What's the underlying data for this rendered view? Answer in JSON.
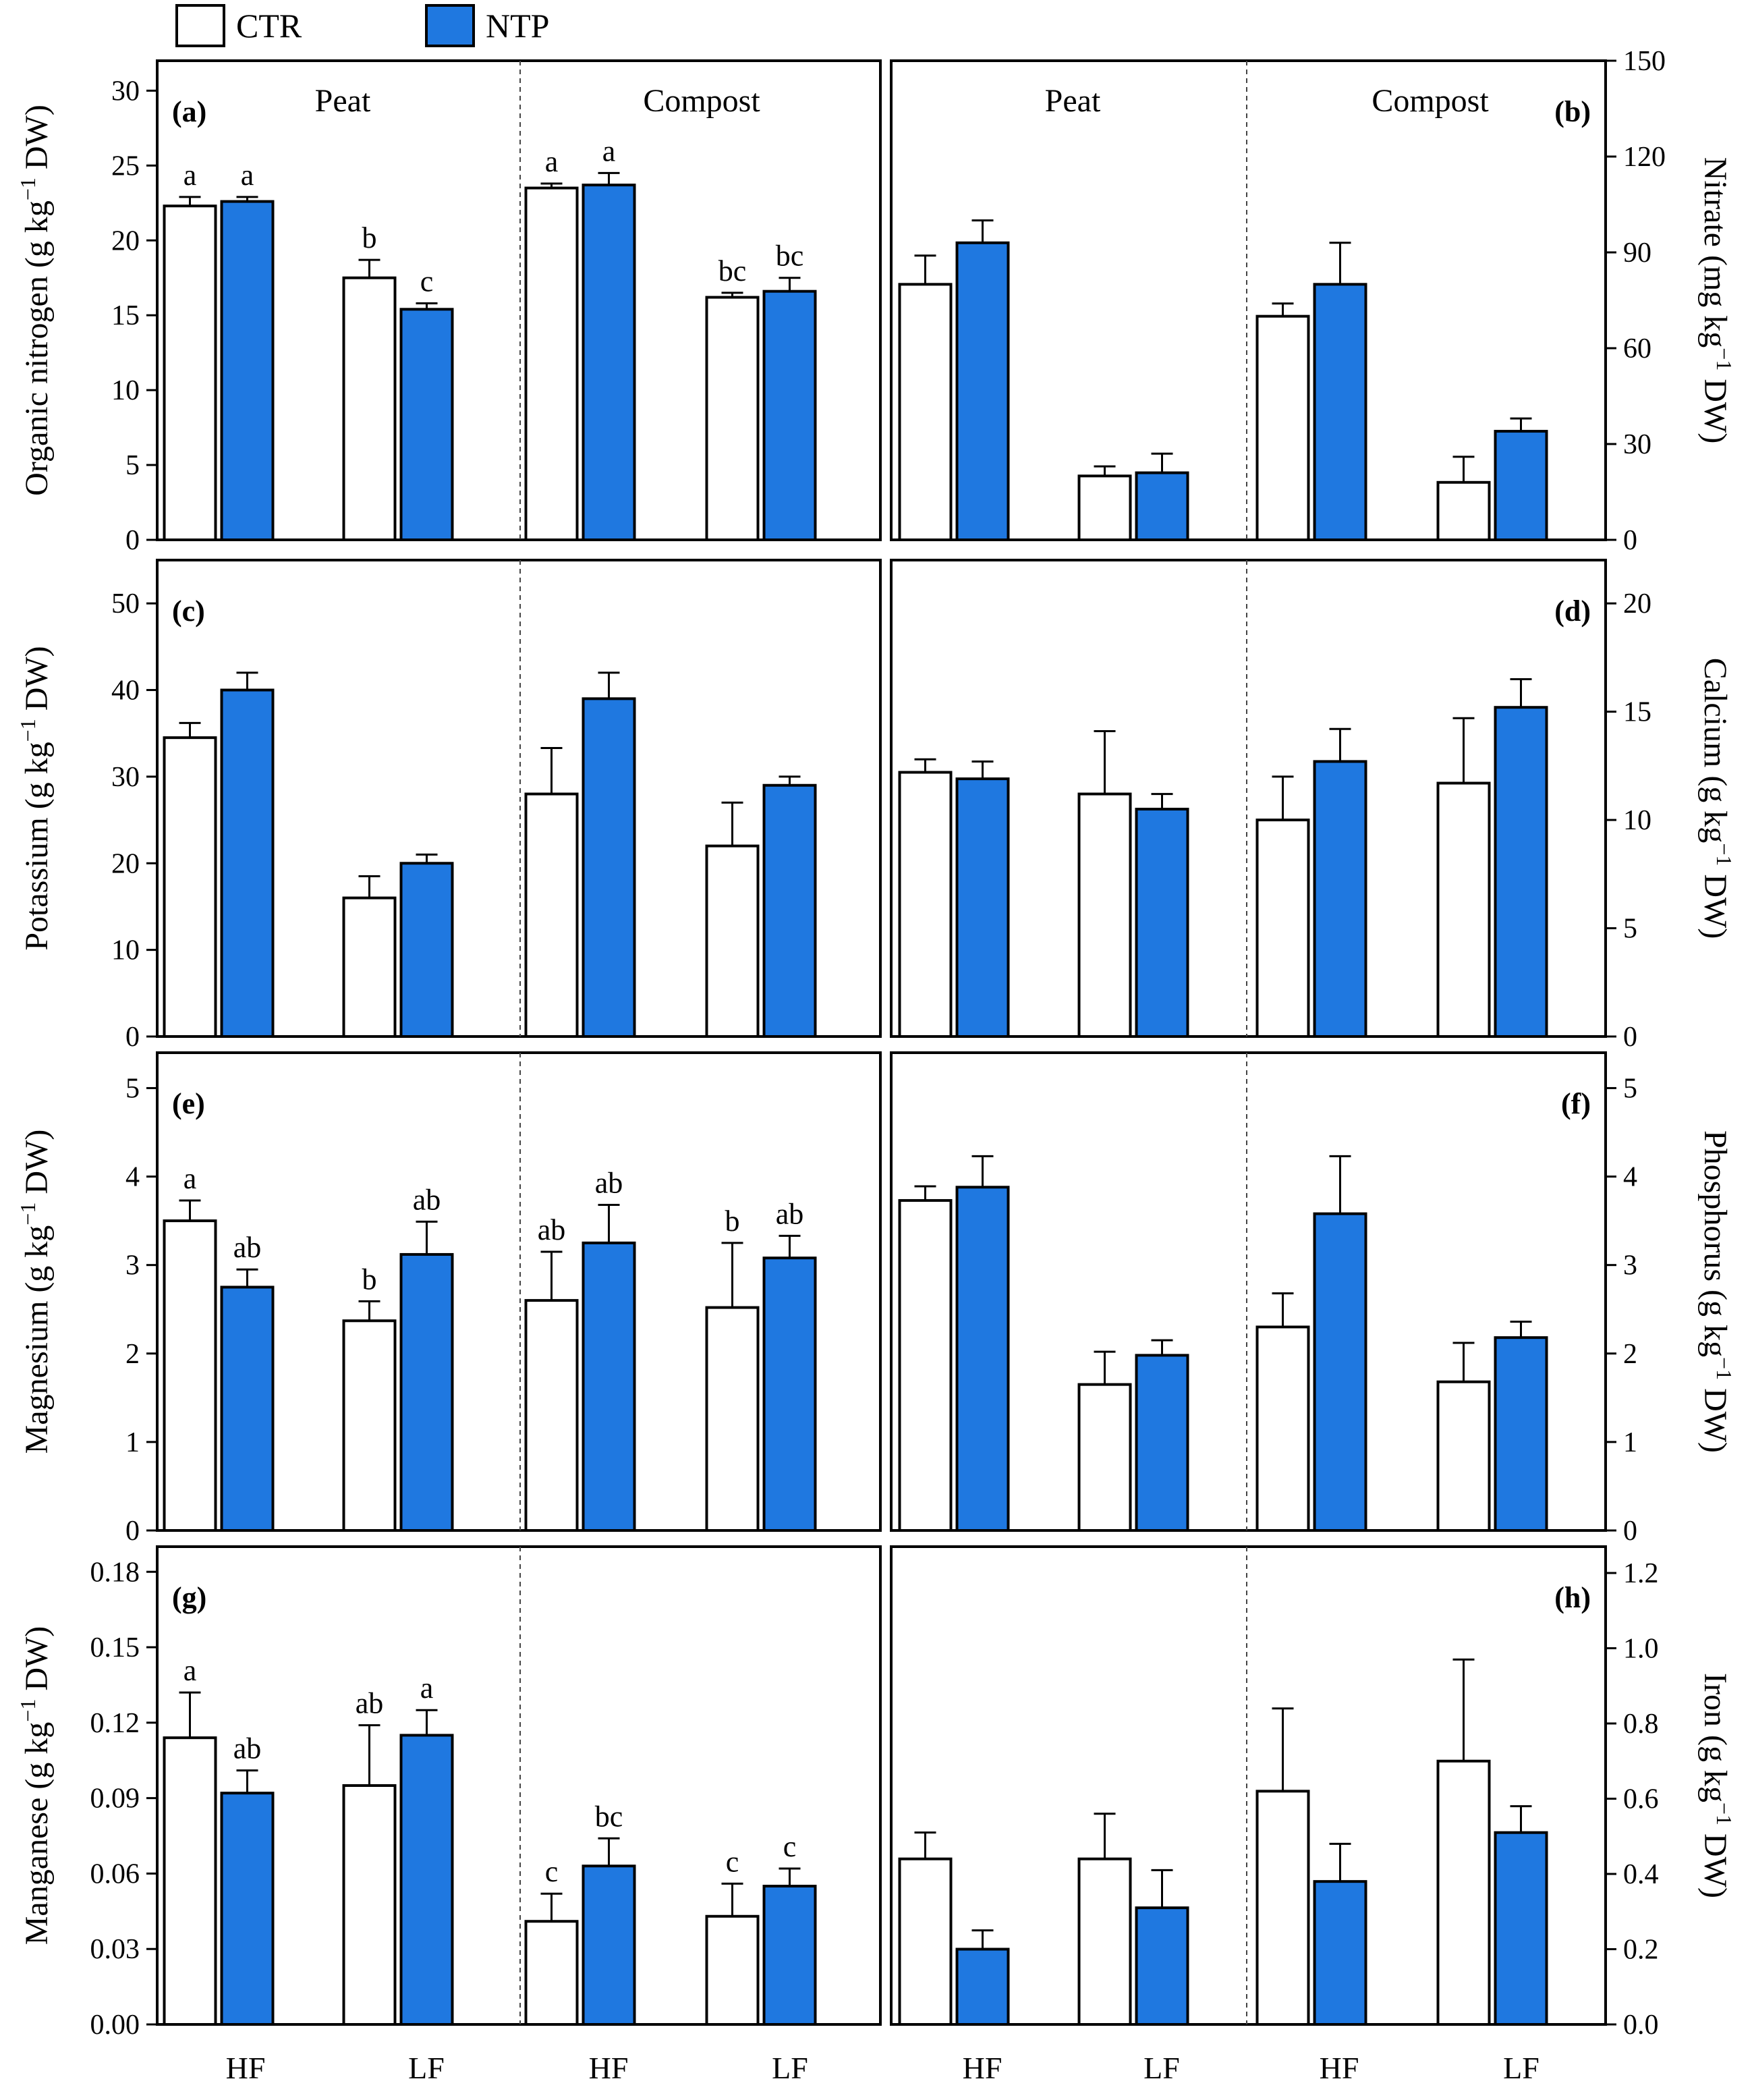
{
  "legend": [
    {
      "name": "CTR",
      "color": "#ffffff"
    },
    {
      "name": "NTP",
      "color": "#1f78e0"
    }
  ],
  "colors": {
    "ctr_fill": "#ffffff",
    "ntp_fill": "#1f78e0",
    "stroke": "#000000"
  },
  "x_categories": [
    "HF",
    "LF",
    "HF",
    "LF",
    "HF",
    "LF",
    "HF",
    "LF"
  ],
  "chart_data": [
    {
      "panel": "(a)",
      "type": "bar",
      "side": "left",
      "ylabel": "Organic nitrogen (g kg⁻¹ DW)",
      "ylim": [
        0,
        32
      ],
      "yticks": [
        0,
        5,
        10,
        15,
        20,
        25,
        30
      ],
      "groups": [
        "Peat",
        "Compost"
      ],
      "categories": [
        "HF",
        "LF",
        "HF",
        "LF"
      ],
      "series": [
        {
          "name": "CTR",
          "values": [
            22.3,
            17.5,
            23.5,
            16.2
          ],
          "errors": [
            0.6,
            1.2,
            0.3,
            0.3
          ],
          "letters": [
            "a",
            "b",
            "a",
            "bc"
          ]
        },
        {
          "name": "NTP",
          "values": [
            22.6,
            15.4,
            23.7,
            16.6
          ],
          "errors": [
            0.3,
            0.4,
            0.8,
            0.9
          ],
          "letters": [
            "a",
            "c",
            "a",
            "bc"
          ]
        }
      ]
    },
    {
      "panel": "(b)",
      "type": "bar",
      "side": "right",
      "ylabel": "Nitrate (mg kg⁻¹ DW)",
      "ylim": [
        0,
        150
      ],
      "yticks": [
        0,
        30,
        60,
        90,
        120,
        150
      ],
      "groups": [
        "Peat",
        "Compost"
      ],
      "categories": [
        "HF",
        "LF",
        "HF",
        "LF"
      ],
      "series": [
        {
          "name": "CTR",
          "values": [
            80,
            20,
            70,
            18
          ],
          "errors": [
            9,
            3,
            4,
            8
          ]
        },
        {
          "name": "NTP",
          "values": [
            93,
            21,
            80,
            34
          ],
          "errors": [
            7,
            6,
            13,
            4
          ]
        }
      ]
    },
    {
      "panel": "(c)",
      "type": "bar",
      "side": "left",
      "ylabel": "Potassium (g kg⁻¹ DW)",
      "ylim": [
        0,
        55
      ],
      "yticks": [
        0,
        10,
        20,
        30,
        40,
        50
      ],
      "categories": [
        "HF",
        "LF",
        "HF",
        "LF"
      ],
      "series": [
        {
          "name": "CTR",
          "values": [
            34.5,
            16,
            28,
            22
          ],
          "errors": [
            1.7,
            2.5,
            5.3,
            5
          ]
        },
        {
          "name": "NTP",
          "values": [
            40,
            20,
            39,
            29
          ],
          "errors": [
            2,
            1,
            3,
            1
          ]
        }
      ]
    },
    {
      "panel": "(d)",
      "type": "bar",
      "side": "right",
      "ylabel": "Calcium (g kg⁻¹ DW)",
      "ylim": [
        0,
        22
      ],
      "yticks": [
        0,
        5,
        10,
        15,
        20
      ],
      "categories": [
        "HF",
        "LF",
        "HF",
        "LF"
      ],
      "series": [
        {
          "name": "CTR",
          "values": [
            12.2,
            11.2,
            10,
            11.7
          ],
          "errors": [
            0.6,
            2.9,
            2,
            3
          ]
        },
        {
          "name": "NTP",
          "values": [
            11.9,
            10.5,
            12.7,
            15.2
          ],
          "errors": [
            0.8,
            0.7,
            1.5,
            1.3
          ]
        }
      ]
    },
    {
      "panel": "(e)",
      "type": "bar",
      "side": "left",
      "ylabel": "Magnesium (g kg⁻¹ DW)",
      "ylim": [
        0,
        5.4
      ],
      "yticks": [
        0,
        1,
        2,
        3,
        4,
        5
      ],
      "categories": [
        "HF",
        "LF",
        "HF",
        "LF"
      ],
      "series": [
        {
          "name": "CTR",
          "values": [
            3.5,
            2.37,
            2.6,
            2.52
          ],
          "errors": [
            0.23,
            0.22,
            0.55,
            0.73
          ],
          "letters": [
            "a",
            "b",
            "ab",
            "b"
          ]
        },
        {
          "name": "NTP",
          "values": [
            2.75,
            3.12,
            3.25,
            3.08
          ],
          "errors": [
            0.2,
            0.37,
            0.43,
            0.25
          ],
          "letters": [
            "ab",
            "ab",
            "ab",
            "ab"
          ]
        }
      ]
    },
    {
      "panel": "(f)",
      "type": "bar",
      "side": "right",
      "ylabel": "Phosphorus (g kg⁻¹ DW)",
      "ylim": [
        0,
        5.4
      ],
      "yticks": [
        0,
        1,
        2,
        3,
        4,
        5
      ],
      "categories": [
        "HF",
        "LF",
        "HF",
        "LF"
      ],
      "series": [
        {
          "name": "CTR",
          "values": [
            3.73,
            1.65,
            2.3,
            1.68
          ],
          "errors": [
            0.16,
            0.37,
            0.38,
            0.44
          ]
        },
        {
          "name": "NTP",
          "values": [
            3.88,
            1.98,
            3.58,
            2.18
          ],
          "errors": [
            0.35,
            0.17,
            0.65,
            0.18
          ]
        }
      ]
    },
    {
      "panel": "(g)",
      "type": "bar",
      "side": "left",
      "ylabel": "Manganese (g kg⁻¹ DW)",
      "ylim": [
        0,
        0.19
      ],
      "yticks": [
        "0.00",
        "0.03",
        "0.06",
        "0.09",
        "0.12",
        "0.15",
        "0.18"
      ],
      "categories": [
        "HF",
        "LF",
        "HF",
        "LF"
      ],
      "series": [
        {
          "name": "CTR",
          "values": [
            0.114,
            0.095,
            0.041,
            0.043
          ],
          "errors": [
            0.018,
            0.024,
            0.011,
            0.013
          ],
          "letters": [
            "a",
            "ab",
            "c",
            "c"
          ]
        },
        {
          "name": "NTP",
          "values": [
            0.092,
            0.115,
            0.063,
            0.055
          ],
          "errors": [
            0.009,
            0.01,
            0.011,
            0.007
          ],
          "letters": [
            "ab",
            "a",
            "bc",
            "c"
          ]
        }
      ]
    },
    {
      "panel": "(h)",
      "type": "bar",
      "side": "right",
      "ylabel": "Iron (g kg⁻¹ DW)",
      "ylim": [
        0,
        1.27
      ],
      "yticks": [
        "0.0",
        "0.2",
        "0.4",
        "0.6",
        "0.8",
        "1.0",
        "1.2"
      ],
      "categories": [
        "HF",
        "LF",
        "HF",
        "LF"
      ],
      "series": [
        {
          "name": "CTR",
          "values": [
            0.44,
            0.44,
            0.62,
            0.7
          ],
          "errors": [
            0.07,
            0.12,
            0.22,
            0.27
          ]
        },
        {
          "name": "NTP",
          "values": [
            0.2,
            0.31,
            0.38,
            0.51
          ],
          "errors": [
            0.05,
            0.1,
            0.1,
            0.07
          ]
        }
      ]
    }
  ]
}
